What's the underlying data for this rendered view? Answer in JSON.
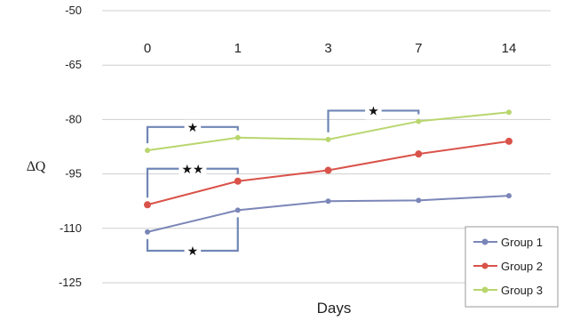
{
  "chart_data": {
    "type": "line",
    "categories": [
      "0",
      "1",
      "3",
      "7",
      "14"
    ],
    "ylabel": "∆Q",
    "xlabel": "Days",
    "ylim": [
      -125,
      -50
    ],
    "yticks": [
      "-50",
      "-65",
      "-80",
      "-95",
      "-110",
      "-125"
    ],
    "grid": "horizontal",
    "legend_position": "bottom-right",
    "series": [
      {
        "name": "Group 1",
        "color": "#7b86b8",
        "values": [
          -111,
          -105,
          -102.5,
          -102.3,
          -101
        ]
      },
      {
        "name": "Group 2",
        "color": "#d9534a",
        "values": [
          -103.5,
          -97,
          -94,
          -89.5,
          -86
        ]
      },
      {
        "name": "Group 3",
        "color": "#b9d66e",
        "values": [
          -88.5,
          -85,
          -85.5,
          -80.5,
          -78
        ]
      }
    ],
    "annotations": [
      {
        "label": "★",
        "series": "Group 3",
        "from": "0",
        "to": "1"
      },
      {
        "label": "★★",
        "series": "Group 2",
        "from": "0",
        "to": "1"
      },
      {
        "label": "★",
        "series": "Group 1",
        "from": "0",
        "to": "1"
      },
      {
        "label": "★",
        "series": "Group 3",
        "from": "3",
        "to": "7"
      }
    ]
  }
}
